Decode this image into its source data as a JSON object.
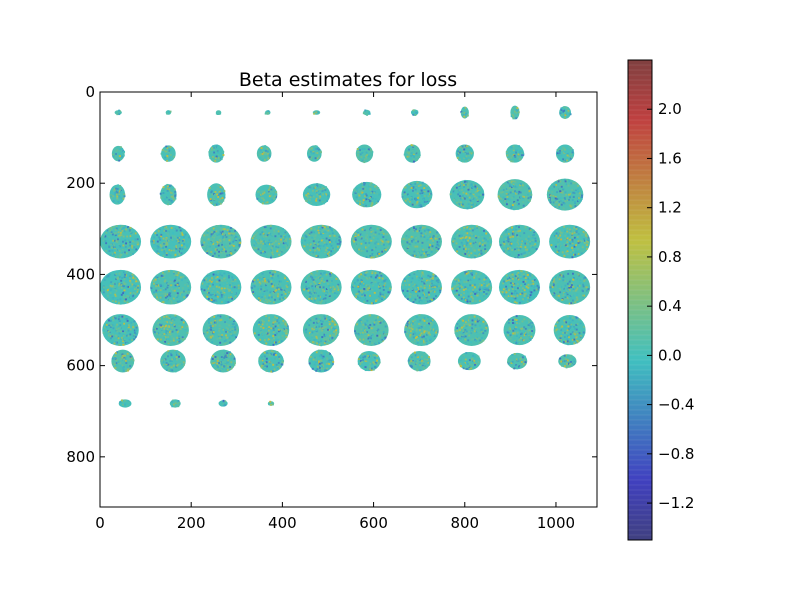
{
  "chart_data": {
    "type": "heatmap",
    "title": "Beta estimates for loss",
    "xlabel": "",
    "ylabel": "",
    "xlim": [
      0,
      1090
    ],
    "ylim": [
      910,
      0
    ],
    "x_ticks": [
      0,
      200,
      400,
      600,
      800,
      1000
    ],
    "y_ticks": [
      0,
      200,
      400,
      600,
      800
    ],
    "grid": false,
    "colormap": "jet (alpha-blended over gray)",
    "colorbar": {
      "range": [
        -1.5,
        2.4
      ],
      "ticks": [
        2.0,
        1.6,
        1.2,
        0.8,
        0.4,
        0.0,
        -0.4,
        -0.8,
        -1.2
      ],
      "tick_labels": [
        "2.0",
        "1.6",
        "1.2",
        "0.8",
        "0.4",
        "0.0",
        "−0.4",
        "−0.8",
        "−1.2"
      ]
    },
    "mosaic": {
      "columns": 10,
      "rows": 8,
      "tile_size": 109,
      "slice_rows": [
        {
          "y": 45,
          "slices": [
            [
              40,
              8,
              5
            ],
            [
              150,
              6,
              5
            ],
            [
              260,
              6,
              5
            ],
            [
              368,
              6,
              5
            ],
            [
              475,
              8,
              5
            ],
            [
              585,
              8,
              6
            ],
            [
              690,
              8,
              7
            ],
            [
              800,
              9,
              13
            ],
            [
              910,
              10,
              15
            ],
            [
              1020,
              13,
              14
            ]
          ]
        },
        {
          "y": 135,
          "slices": [
            [
              40,
              14,
              17
            ],
            [
              150,
              16,
              18
            ],
            [
              255,
              17,
              20
            ],
            [
              360,
              16,
              18
            ],
            [
              470,
              16,
              18
            ],
            [
              580,
              19,
              20
            ],
            [
              685,
              18,
              20
            ],
            [
              800,
              20,
              20
            ],
            [
              910,
              20,
              20
            ],
            [
              1020,
              20,
              20
            ]
          ]
        },
        {
          "y": 225,
          "slices": [
            [
              38,
              17,
              22
            ],
            [
              150,
              18,
              23
            ],
            [
              255,
              20,
              25
            ],
            [
              365,
              24,
              22
            ],
            [
              475,
              30,
              25
            ],
            [
              585,
              32,
              28
            ],
            [
              695,
              34,
              30
            ],
            [
              805,
              38,
              32
            ],
            [
              910,
              38,
              34
            ],
            [
              1020,
              40,
              35
            ]
          ]
        },
        {
          "y": 328,
          "slices": [
            [
              45,
              45,
              37
            ],
            [
              155,
              45,
              37
            ],
            [
              265,
              45,
              37
            ],
            [
              375,
              45,
              37
            ],
            [
              485,
              45,
              37
            ],
            [
              595,
              45,
              37
            ],
            [
              705,
              45,
              37
            ],
            [
              815,
              45,
              37
            ],
            [
              920,
              45,
              37
            ],
            [
              1030,
              45,
              37
            ]
          ]
        },
        {
          "y": 428,
          "slices": [
            [
              45,
              45,
              38
            ],
            [
              155,
              45,
              38
            ],
            [
              265,
              45,
              38
            ],
            [
              375,
              45,
              38
            ],
            [
              485,
              45,
              38
            ],
            [
              595,
              45,
              38
            ],
            [
              705,
              45,
              38
            ],
            [
              815,
              45,
              38
            ],
            [
              920,
              45,
              38
            ],
            [
              1030,
              45,
              38
            ]
          ]
        },
        {
          "y": 522,
          "slices": [
            [
              45,
              40,
              35
            ],
            [
              155,
              40,
              35
            ],
            [
              265,
              40,
              35
            ],
            [
              375,
              40,
              35
            ],
            [
              485,
              40,
              35
            ],
            [
              595,
              38,
              35
            ],
            [
              705,
              38,
              35
            ],
            [
              815,
              38,
              35
            ],
            [
              920,
              35,
              33
            ],
            [
              1030,
              35,
              33
            ]
          ]
        },
        {
          "y": 590,
          "slices": [
            [
              50,
              25,
              25
            ],
            [
              160,
              28,
              25
            ],
            [
              270,
              28,
              25
            ],
            [
              375,
              28,
              25
            ],
            [
              485,
              28,
              25
            ],
            [
              590,
              25,
              22
            ],
            [
              700,
              25,
              22
            ],
            [
              810,
              25,
              20
            ],
            [
              915,
              22,
              18
            ],
            [
              1025,
              20,
              15
            ]
          ]
        },
        {
          "y": 683,
          "slices": [
            [
              55,
              14,
              9
            ],
            [
              165,
              12,
              9
            ],
            [
              270,
              10,
              7
            ],
            [
              375,
              7,
              5
            ]
          ]
        }
      ]
    }
  }
}
